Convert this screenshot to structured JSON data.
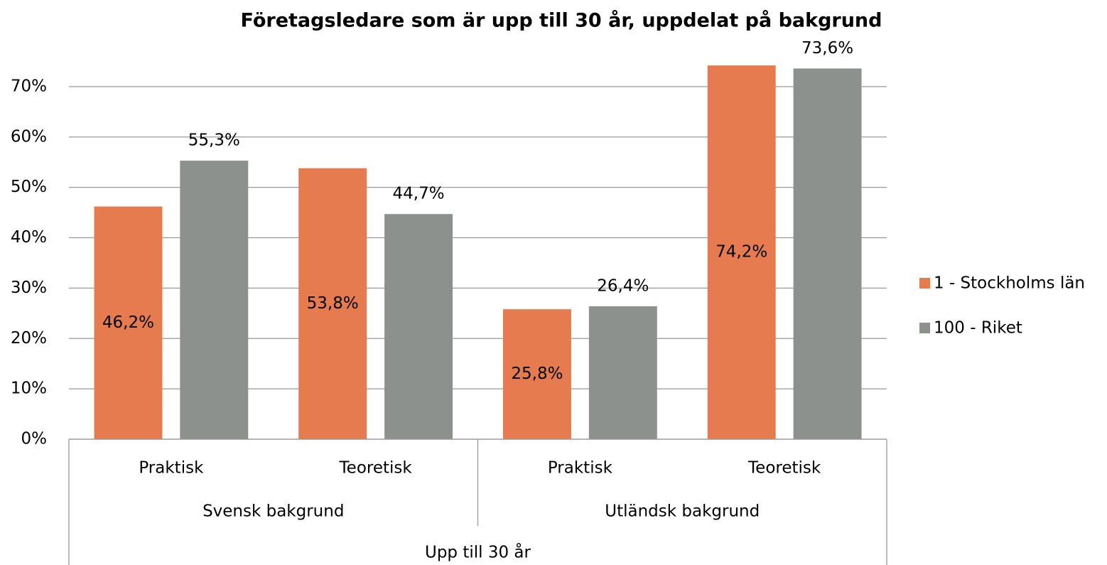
{
  "chart_data": {
    "type": "bar",
    "title": "Företagsledare som är upp till 30 år, uppdelat på bakgrund",
    "supergroup": "Upp till 30 år",
    "groups": [
      {
        "name": "Svensk bakgrund",
        "categories": [
          "Praktisk",
          "Teoretisk"
        ]
      },
      {
        "name": "Utländsk bakgrund",
        "categories": [
          "Praktisk",
          "Teoretisk"
        ]
      }
    ],
    "series": [
      {
        "name": "1 - Stockholms län",
        "color": "#e57b4f",
        "label_position": "center",
        "values": [
          46.2,
          53.8,
          25.8,
          74.2
        ],
        "value_labels": [
          "46,2%",
          "53,8%",
          "25,8%",
          "74,2%"
        ]
      },
      {
        "name": "100 - Riket",
        "color": "#8c918e",
        "label_position": "above",
        "values": [
          55.3,
          44.7,
          26.4,
          73.6
        ],
        "value_labels": [
          "55,3%",
          "44,7%",
          "26,4%",
          "73,6%"
        ]
      }
    ],
    "ylim": [
      0,
      80
    ],
    "yticks": [
      {
        "value": 0,
        "label": "0%"
      },
      {
        "value": 10,
        "label": "10%"
      },
      {
        "value": 20,
        "label": "20%"
      },
      {
        "value": 30,
        "label": "30%"
      },
      {
        "value": 40,
        "label": "40%"
      },
      {
        "value": 50,
        "label": "50%"
      },
      {
        "value": 60,
        "label": "60%"
      },
      {
        "value": 70,
        "label": "70%"
      }
    ],
    "grid": true,
    "legend": "right"
  }
}
